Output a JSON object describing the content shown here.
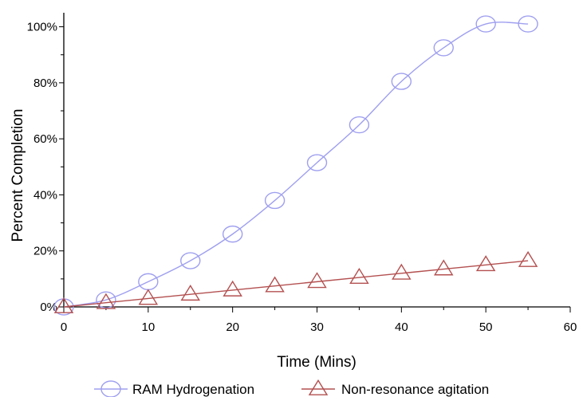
{
  "chart_data": {
    "type": "line",
    "title": "",
    "xlabel": "Time (Mins)",
    "ylabel": "Percent Completion",
    "xlim": [
      0,
      60
    ],
    "ylim": [
      0,
      105
    ],
    "x_ticks": [
      0,
      10,
      20,
      30,
      40,
      50,
      60
    ],
    "y_ticks": [
      0,
      20,
      40,
      60,
      80,
      100
    ],
    "y_tick_labels": [
      "0%",
      "20%",
      "40%",
      "60%",
      "80%",
      "100%"
    ],
    "grid": false,
    "legend_position": "bottom",
    "series": [
      {
        "name": "RAM Hydrogenation",
        "marker": "circle",
        "color": "#9f9ff0",
        "x": [
          0,
          5,
          10,
          15,
          20,
          25,
          30,
          35,
          40,
          45,
          50,
          55
        ],
        "y": [
          0,
          2.5,
          9,
          16.5,
          26,
          38,
          51.5,
          65,
          80.5,
          92.5,
          101,
          101
        ]
      },
      {
        "name": "Non-resonance agitation",
        "marker": "triangle",
        "color": "#b45050",
        "x": [
          0,
          5,
          10,
          15,
          20,
          25,
          30,
          35,
          40,
          45,
          50,
          55
        ],
        "y": [
          0,
          1.5,
          3,
          4.5,
          6,
          7.5,
          9,
          10.5,
          12,
          13.5,
          15,
          16.5
        ]
      }
    ]
  }
}
